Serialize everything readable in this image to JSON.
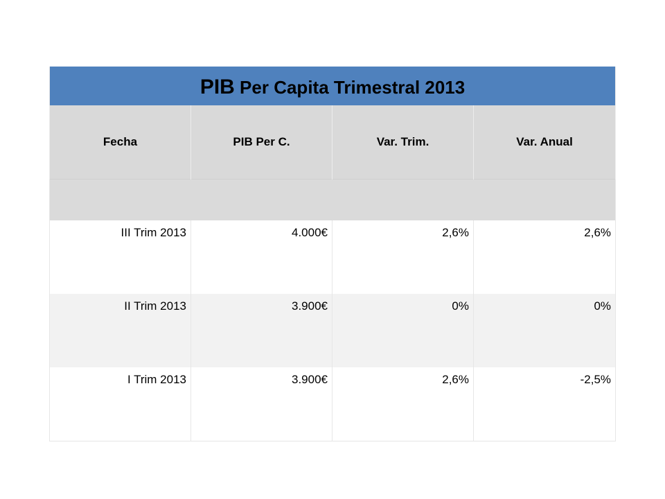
{
  "table": {
    "title_prefix": "PIB",
    "title_rest": " Per Capita Trimestral 2013",
    "headers": [
      "Fecha",
      "PIB Per C.",
      "Var. Trim.",
      "Var. Anual"
    ],
    "rows": [
      [
        "III Trim 2013",
        "4.000€",
        "2,6%",
        "2,6%"
      ],
      [
        "II Trim 2013",
        "3.900€",
        "0%",
        "0%"
      ],
      [
        "I Trim 2013",
        "3.900€",
        "2,6%",
        "-2,5%"
      ]
    ]
  },
  "colors": {
    "title_background": "#4f81bd",
    "header_background": "#d9d9d9",
    "alt_row_background": "#f2f2f2"
  }
}
